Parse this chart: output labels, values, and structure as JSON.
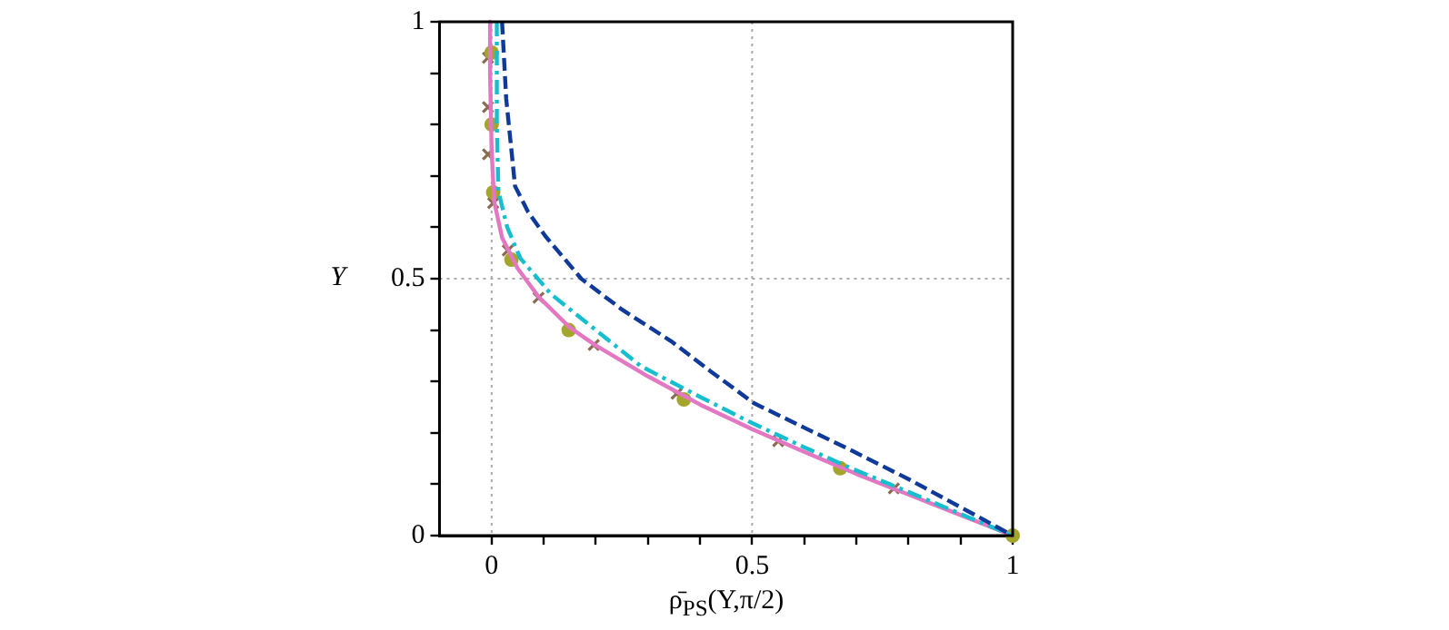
{
  "chart_data": {
    "type": "line",
    "xlabel": "ρ̄$_{PS}$(Y,π/2)",
    "ylabel": "Y",
    "xlim": [
      -0.1,
      1
    ],
    "ylim": [
      0,
      1
    ],
    "xticks": [
      0,
      {
        "value": 0.1,
        "label": null
      },
      {
        "value": 0.2,
        "label": null
      },
      {
        "value": 0.3,
        "label": null
      },
      {
        "value": 0.4,
        "label": null
      },
      0.5,
      {
        "value": 0.6,
        "label": null
      },
      {
        "value": 0.7,
        "label": null
      },
      {
        "value": 0.8,
        "label": null
      },
      {
        "value": 0.9,
        "label": null
      },
      1
    ],
    "yticks": [
      0,
      {
        "value": 0.1,
        "label": null
      },
      {
        "value": 0.2,
        "label": null
      },
      {
        "value": 0.3,
        "label": null
      },
      {
        "value": 0.4,
        "label": null
      },
      0.5,
      {
        "value": 0.6,
        "label": null
      },
      {
        "value": 0.7,
        "label": null
      },
      {
        "value": 0.8,
        "label": null
      },
      {
        "value": 0.9,
        "label": null
      },
      1
    ],
    "grid": true,
    "legend": false,
    "series": [
      {
        "type": "line",
        "color": "#103a9a",
        "line_style": "dashed",
        "marker": "none",
        "x": [
          0.02,
          0.028,
          0.045,
          0.07,
          0.103,
          0.172,
          0.25,
          0.345,
          0.42,
          0.503,
          0.6,
          0.69,
          0.8,
          0.917,
          1
        ],
        "values": [
          1,
          0.85,
          0.68,
          0.63,
          0.583,
          0.5,
          0.44,
          0.378,
          0.32,
          0.258,
          0.21,
          0.166,
          0.11,
          0.046,
          0
        ]
      },
      {
        "type": "line",
        "color": "#17becf",
        "line_style": "dashdot",
        "marker": "none",
        "x": [
          0.01,
          0.01,
          0.013,
          0.03,
          0.055,
          0.114,
          0.2,
          0.286,
          0.4,
          0.5,
          0.6,
          0.69,
          0.8,
          0.917,
          1
        ],
        "values": [
          1,
          0.8,
          0.67,
          0.6,
          0.54,
          0.47,
          0.4,
          0.33,
          0.27,
          0.219,
          0.172,
          0.131,
          0.085,
          0.035,
          0
        ]
      },
      {
        "type": "line",
        "color": "#e377c2",
        "line_style": "solid",
        "marker": "none",
        "x": [
          -0.003,
          -0.003,
          0,
          0.005,
          0.02,
          0.05,
          0.09,
          0.15,
          0.2,
          0.3,
          0.4,
          0.5,
          0.6,
          0.7,
          0.8,
          0.9,
          1
        ],
        "values": [
          1,
          0.9,
          0.75,
          0.65,
          0.58,
          0.52,
          0.465,
          0.405,
          0.37,
          0.31,
          0.255,
          0.207,
          0.163,
          0.12,
          0.08,
          0.04,
          0
        ]
      },
      {
        "type": "scatter",
        "color": "#a3a62a",
        "marker": "circle",
        "x": [
          0,
          0,
          0.003,
          0.038,
          0.148,
          0.369,
          0.669,
          1
        ],
        "values": [
          0.94,
          0.8,
          0.668,
          0.537,
          0.4,
          0.265,
          0.131,
          0
        ]
      },
      {
        "type": "scatter",
        "color": "#8c6a4f",
        "marker": "cross",
        "x": [
          -0.007,
          -0.007,
          -0.007,
          0.003,
          0.031,
          0.09,
          0.196,
          0.355,
          0.55,
          0.772
        ],
        "values": [
          0.93,
          0.834,
          0.742,
          0.647,
          0.555,
          0.463,
          0.371,
          0.276,
          0.184,
          0.092
        ]
      }
    ]
  }
}
